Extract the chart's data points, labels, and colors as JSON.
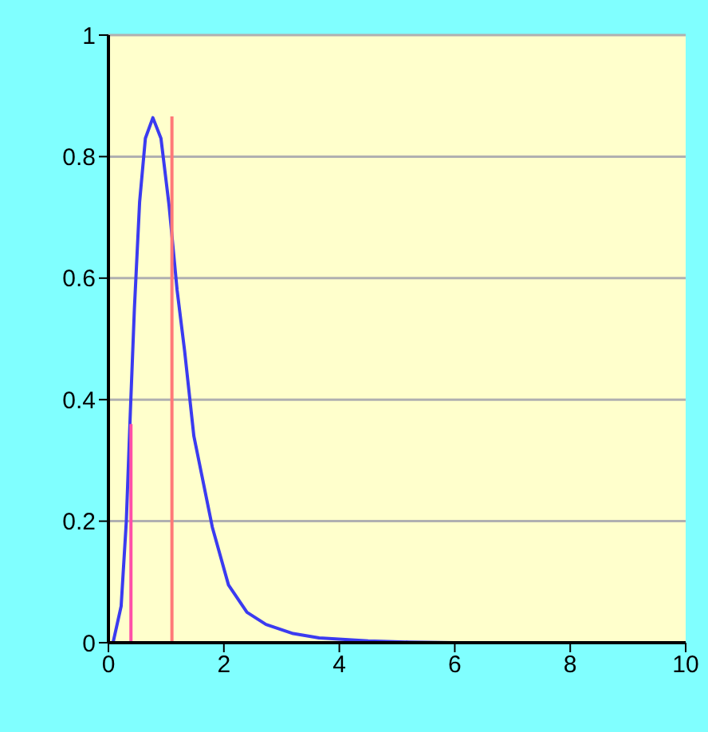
{
  "chart_data": {
    "type": "line",
    "xlim": [
      0,
      10
    ],
    "xticks": [
      0,
      2,
      4,
      6,
      8,
      10
    ],
    "ylim": [
      0,
      1
    ],
    "yticks": [
      0,
      0.2,
      0.4,
      0.6,
      0.8,
      1
    ],
    "grid": "y",
    "marker": "none",
    "series": [
      {
        "color": "#3b3bf0",
        "x": [
          0,
          0.08,
          0.22,
          0.31,
          0.38,
          0.45,
          0.54,
          0.64,
          0.77,
          0.91,
          1.05,
          1.19,
          1.32,
          1.48,
          1.8,
          2.08,
          2.4,
          2.73,
          3.2,
          3.65,
          4.5,
          5.2,
          6
        ],
        "values": [
          0,
          0,
          0.06,
          0.2,
          0.38,
          0.55,
          0.725,
          0.83,
          0.864,
          0.83,
          0.72,
          0.58,
          0.48,
          0.34,
          0.19,
          0.095,
          0.05,
          0.03,
          0.015,
          0.008,
          0.003,
          0.001,
          0
        ]
      },
      {
        "color": "#ff4fa8",
        "x": [
          0.39,
          0.39
        ],
        "values": [
          0,
          0.36
        ]
      },
      {
        "color": "#ff7878",
        "x": [
          1.1,
          1.1
        ],
        "values": [
          0,
          0.866
        ]
      }
    ]
  }
}
